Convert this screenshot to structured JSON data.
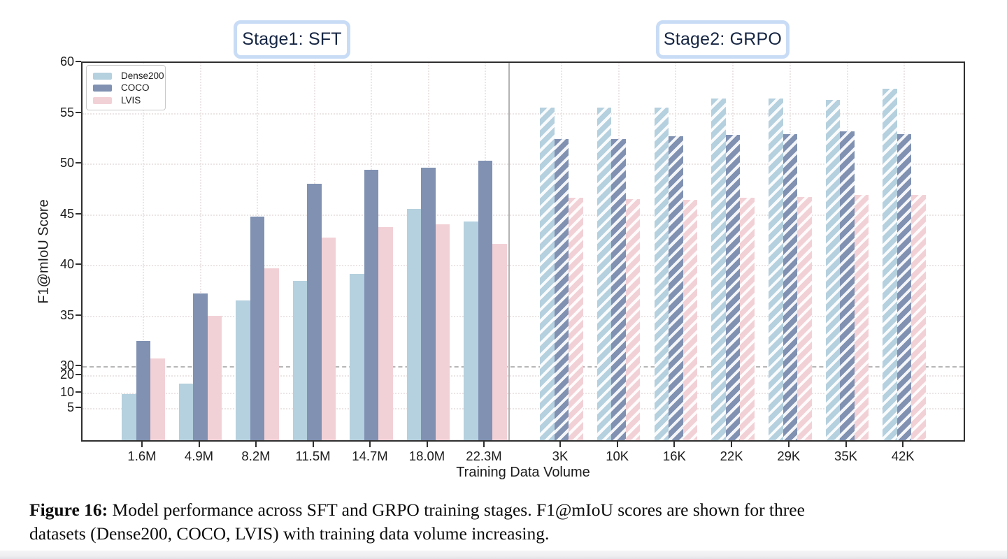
{
  "figure": {
    "stage1_label": "Stage1: SFT",
    "stage2_label": "Stage2: GRPO"
  },
  "chart_data": {
    "type": "bar",
    "title": "",
    "xlabel": "Training Data Volume",
    "ylabel": "F1@mIoU Score",
    "y_ticks": [
      60,
      55,
      50,
      45,
      40,
      35,
      30,
      20,
      10,
      5
    ],
    "y_axis_note": "broken axis: linear from 30 to 60, compressed below 30",
    "reference_line_y": 30,
    "grid": true,
    "legend": {
      "position": "upper-left",
      "entries": [
        {
          "label": "Dense200",
          "color": "#b5d0de"
        },
        {
          "label": "COCO",
          "color": "#8091b2"
        },
        {
          "label": "LVIS",
          "color": "#f2d1d6"
        }
      ]
    },
    "sections": [
      {
        "label": "Stage1: SFT",
        "hatched": false,
        "categories": [
          "1.6M",
          "4.9M",
          "8.2M",
          "11.5M",
          "14.7M",
          "18.0M",
          "22.3M"
        ],
        "series": [
          {
            "name": "Dense200",
            "color": "#b5d0de",
            "values": [
              8.9,
              14.0,
              36.3,
              38.2,
              38.9,
              45.3,
              44.1
            ]
          },
          {
            "name": "COCO",
            "color": "#8091b2",
            "values": [
              32.3,
              37.0,
              44.6,
              47.8,
              49.2,
              49.4,
              50.1
            ]
          },
          {
            "name": "LVIS",
            "color": "#f2d1d6",
            "values": [
              30.6,
              34.8,
              39.5,
              42.5,
              43.5,
              43.8,
              41.9
            ]
          }
        ]
      },
      {
        "label": "Stage2: GRPO",
        "hatched": true,
        "categories": [
          "3K",
          "10K",
          "16K",
          "22K",
          "29K",
          "35K",
          "42K"
        ],
        "series": [
          {
            "name": "Dense200",
            "color": "#b5d0de",
            "values": [
              55.3,
              55.3,
              55.3,
              56.2,
              56.2,
              56.1,
              57.2
            ]
          },
          {
            "name": "COCO",
            "color": "#8091b2",
            "values": [
              52.2,
              52.2,
              52.5,
              52.6,
              52.7,
              53.0,
              52.7
            ]
          },
          {
            "name": "LVIS",
            "color": "#f2d1d6",
            "values": [
              46.4,
              46.3,
              46.2,
              46.4,
              46.5,
              46.7,
              46.7
            ]
          }
        ]
      }
    ]
  },
  "caption": {
    "prefix": "Figure 16:",
    "line1_rest": " Model performance across SFT and GRPO training stages. F1@mIoU scores are shown for three",
    "line2": "datasets (Dense200, COCO, LVIS) with training data volume increasing."
  }
}
